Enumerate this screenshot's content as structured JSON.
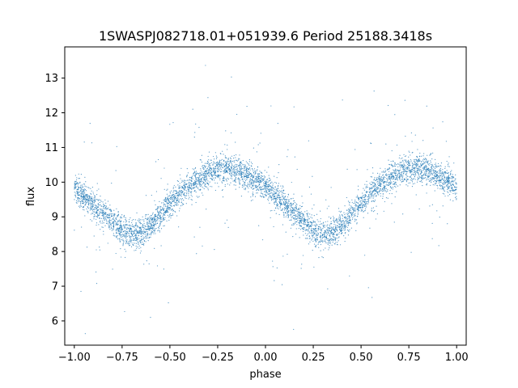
{
  "chart_data": {
    "type": "scatter",
    "title": "1SWASPJ082718.01+051939.6 Period 25188.3418s",
    "xlabel": "phase",
    "ylabel": "flux",
    "xlim": [
      -1.05,
      1.05
    ],
    "ylim": [
      5.3,
      13.9
    ],
    "x_ticks": [
      -1.0,
      -0.75,
      -0.5,
      -0.25,
      0.0,
      0.25,
      0.5,
      0.75,
      1.0
    ],
    "x_tick_labels": [
      "−1.00",
      "−0.75",
      "−0.50",
      "−0.25",
      "0.00",
      "0.25",
      "0.50",
      "0.75",
      "1.00"
    ],
    "y_ticks": [
      6,
      7,
      8,
      9,
      10,
      11,
      12,
      13
    ],
    "y_tick_labels": [
      "6",
      "7",
      "8",
      "9",
      "10",
      "11",
      "12",
      "13"
    ],
    "grid": false,
    "legend": "none",
    "marker_color": "#1f77b4",
    "series": [
      {
        "x": [
          -1.0,
          -0.95,
          -0.9,
          -0.85,
          -0.8,
          -0.75,
          -0.7,
          -0.65,
          -0.6,
          -0.55,
          -0.5,
          -0.45,
          -0.4,
          -0.35,
          -0.3,
          -0.25,
          -0.2,
          -0.15,
          -0.1,
          -0.05,
          0.0,
          0.05,
          0.1,
          0.15,
          0.2,
          0.25,
          0.3,
          0.35,
          0.4,
          0.45,
          0.5,
          0.55,
          0.6,
          0.65,
          0.7,
          0.75,
          0.8,
          0.85,
          0.9,
          0.95,
          1.0
        ],
        "y": [
          9.8,
          9.6,
          9.35,
          9.1,
          8.85,
          8.65,
          8.5,
          8.55,
          8.75,
          9.05,
          9.35,
          9.65,
          9.9,
          10.1,
          10.25,
          10.35,
          10.4,
          10.35,
          10.2,
          10.05,
          9.85,
          9.6,
          9.35,
          9.1,
          8.85,
          8.65,
          8.5,
          8.55,
          8.75,
          9.05,
          9.35,
          9.65,
          9.9,
          10.1,
          10.25,
          10.35,
          10.4,
          10.35,
          10.2,
          10.05,
          9.85
        ]
      }
    ]
  }
}
